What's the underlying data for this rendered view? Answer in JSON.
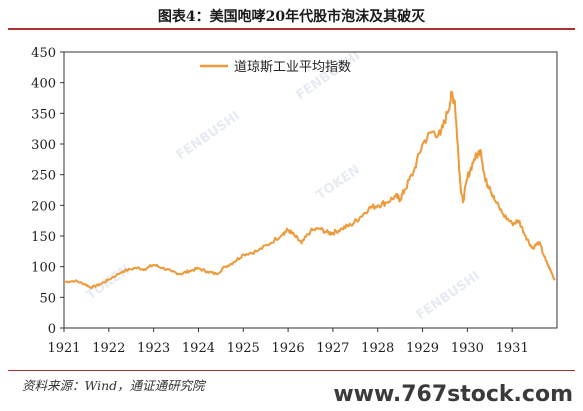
{
  "header": {
    "title": "图表4：美国咆哮20年代股市泡沫及其破灭"
  },
  "footer": {
    "source": "资料来源：Wind，通证通研究院",
    "watermark": "www.767stock.com"
  },
  "colors": {
    "series": "#ef9a3a",
    "axis": "#333333",
    "title_rule": "#b03030"
  },
  "chart_data": {
    "type": "line",
    "title": "图表4：美国咆哮20年代股市泡沫及其破灭",
    "xlabel": "",
    "ylabel": "",
    "xlim": [
      1921,
      1932
    ],
    "ylim": [
      0,
      450
    ],
    "x_ticks": [
      "1921",
      "1922",
      "1923",
      "1924",
      "1925",
      "1926",
      "1927",
      "1928",
      "1929",
      "1930",
      "1931"
    ],
    "y_ticks": [
      "0",
      "50",
      "100",
      "150",
      "200",
      "250",
      "300",
      "350",
      "400",
      "450"
    ],
    "legend": {
      "position": "top-left"
    },
    "series": [
      {
        "name": "道琼斯工业平均指数",
        "x": [
          1921.0,
          1921.25,
          1921.45,
          1921.6,
          1921.8,
          1922.0,
          1922.3,
          1922.6,
          1922.8,
          1923.0,
          1923.2,
          1923.4,
          1923.6,
          1923.8,
          1924.0,
          1924.2,
          1924.4,
          1924.6,
          1924.8,
          1925.0,
          1925.3,
          1925.6,
          1925.9,
          1926.0,
          1926.15,
          1926.3,
          1926.5,
          1926.7,
          1926.9,
          1927.0,
          1927.2,
          1927.4,
          1927.6,
          1927.8,
          1928.0,
          1928.2,
          1928.4,
          1928.5,
          1928.6,
          1928.8,
          1929.0,
          1929.2,
          1929.4,
          1929.55,
          1929.65,
          1929.72,
          1929.8,
          1929.85,
          1929.9,
          1930.0,
          1930.15,
          1930.3,
          1930.4,
          1930.5,
          1930.6,
          1930.8,
          1931.0,
          1931.15,
          1931.3,
          1931.45,
          1931.6,
          1931.75,
          1931.85,
          1931.95
        ],
        "y": [
          75,
          77,
          72,
          66,
          71,
          79,
          92,
          98,
          96,
          103,
          98,
          92,
          88,
          93,
          97,
          92,
          88,
          100,
          108,
          120,
          125,
          138,
          155,
          160,
          150,
          138,
          158,
          162,
          155,
          155,
          162,
          168,
          180,
          195,
          200,
          205,
          215,
          210,
          225,
          255,
          300,
          320,
          315,
          350,
          380,
          370,
          280,
          230,
          205,
          245,
          275,
          290,
          240,
          230,
          210,
          185,
          170,
          175,
          150,
          130,
          140,
          110,
          95,
          78
        ]
      }
    ]
  }
}
